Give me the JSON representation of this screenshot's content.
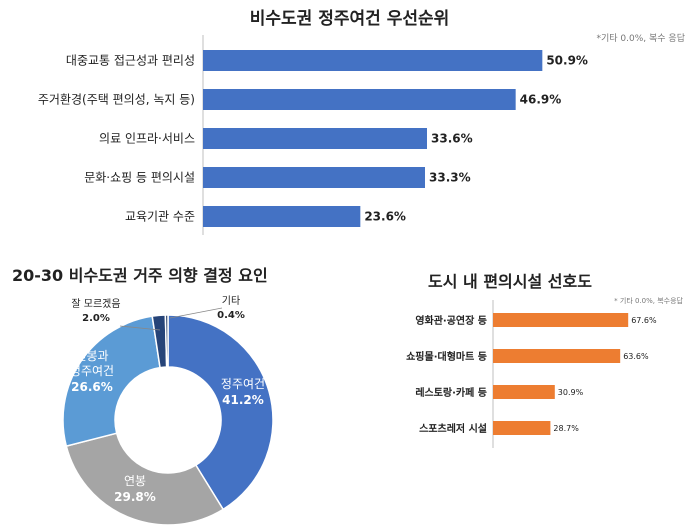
{
  "charts": {
    "top": {
      "title": "비수도권 정주여건 우선순위",
      "note": "*기타 0.0%, 복수 응답"
    },
    "donut": {
      "title": "20-30 비수도권 거주 의향 결정 요인"
    },
    "bottom_right": {
      "title": "도시 내 편의시설 선호도",
      "note": "* 기타 0.0%, 복수응답"
    }
  },
  "chart_data": [
    {
      "type": "bar",
      "orientation": "horizontal",
      "title": "비수도권 정주여건 우선순위",
      "categories": [
        "대중교통 접근성과 편리성",
        "주거환경(주택 편의성, 녹지 등)",
        "의료 인프라·서비스",
        "문화·쇼핑 등 편의시설",
        "교육기관 수준"
      ],
      "values": [
        50.9,
        46.9,
        33.6,
        33.3,
        23.6
      ],
      "labels": [
        "50.9%",
        "46.9%",
        "33.6%",
        "33.3%",
        "23.6%"
      ],
      "xlim": [
        0,
        60
      ],
      "color": "#4472C4"
    },
    {
      "type": "pie",
      "style": "donut",
      "title": "20-30 비수도권 거주 의향 결정 요인",
      "slices": [
        {
          "name": "정주여건",
          "value": 41.2,
          "label": "41.2%",
          "color": "#4472C4"
        },
        {
          "name": "연봉",
          "value": 29.8,
          "label": "29.8%",
          "color": "#A5A5A5"
        },
        {
          "name": "연봉과 정주여건",
          "value": 26.6,
          "label": "26.6%",
          "color": "#5B9BD5"
        },
        {
          "name": "잘 모르겠음",
          "value": 2.0,
          "label": "2.0%",
          "color": "#264478"
        },
        {
          "name": "기타",
          "value": 0.4,
          "label": "0.4%",
          "color": "#1F3864"
        }
      ]
    },
    {
      "type": "bar",
      "orientation": "horizontal",
      "title": "도시 내 편의시설 선호도",
      "categories": [
        "영화관·공연장 등",
        "쇼핑몰·대형마트 등",
        "레스토랑·카페 등",
        "스포츠레저 시설"
      ],
      "values": [
        67.6,
        63.6,
        30.9,
        28.7
      ],
      "labels": [
        "67.6%",
        "63.6%",
        "30.9%",
        "28.7%"
      ],
      "xlim": [
        0,
        80
      ],
      "color": "#ED7D31"
    }
  ]
}
